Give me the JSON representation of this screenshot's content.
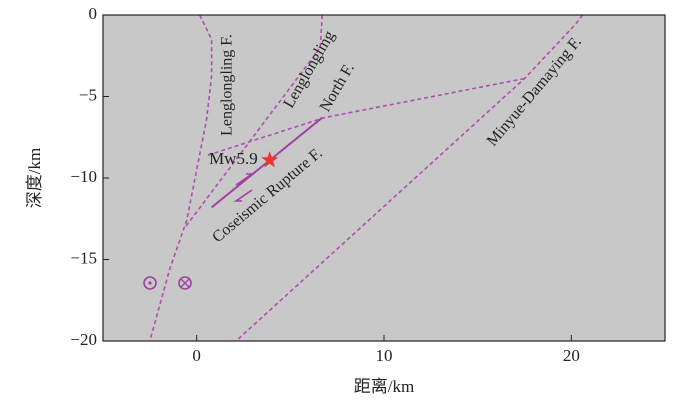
{
  "chart_data": {
    "type": "line",
    "xlabel": "距离/km",
    "ylabel": "深度/km",
    "xlim": [
      -5,
      25
    ],
    "ylim": [
      -20,
      0
    ],
    "xticks": [
      0,
      10,
      20
    ],
    "yticks": [
      0,
      {
        "value": -5,
        "label": "−5"
      },
      {
        "value": -10,
        "label": "−10"
      },
      {
        "value": -15,
        "label": "−15"
      },
      {
        "value": -20,
        "label": "−20"
      }
    ],
    "background": "#c8c8c8",
    "series": [
      {
        "color": "#b04cb0",
        "style": "dashed",
        "x": [
          0.16,
          0.8,
          0.8,
          0.53,
          0,
          -0.53,
          -1.44,
          -2.5
        ],
        "values": [
          0,
          -1.5,
          -3.7,
          -6.4,
          -9.5,
          -12.6,
          -15.6,
          -20
        ]
      },
      {
        "color": "#b04cb0",
        "style": "dashed",
        "x": [
          6.7,
          6.6,
          -0.6
        ],
        "values": [
          0,
          -2,
          -13
        ]
      },
      {
        "color": "#b04cb0",
        "style": "dashed",
        "x": [
          0.6,
          6.8,
          17.5
        ],
        "values": [
          -8.6,
          -6.3,
          -3.9
        ]
      },
      {
        "color": "#b04cb0",
        "style": "dashed",
        "x": [
          20.6,
          20.2,
          17.5,
          2.1
        ],
        "values": [
          0,
          -0.6,
          -3.9,
          -20
        ]
      },
      {
        "color": "#a040a0",
        "style": "solid",
        "x": [
          0.8,
          6.7
        ],
        "values": [
          -11.8,
          -6.3
        ]
      }
    ],
    "event": {
      "label": "Mw5.9",
      "x": 3.9,
      "y": -8.9,
      "color": "#ee3333"
    },
    "annotations": [
      {
        "text": "Lenglongling F."
      },
      {
        "text": "Lenglongling"
      },
      {
        "text": "North F."
      },
      {
        "text": "Minyue-Damaying F."
      },
      {
        "text": "Coseismic Rupture F."
      }
    ]
  }
}
